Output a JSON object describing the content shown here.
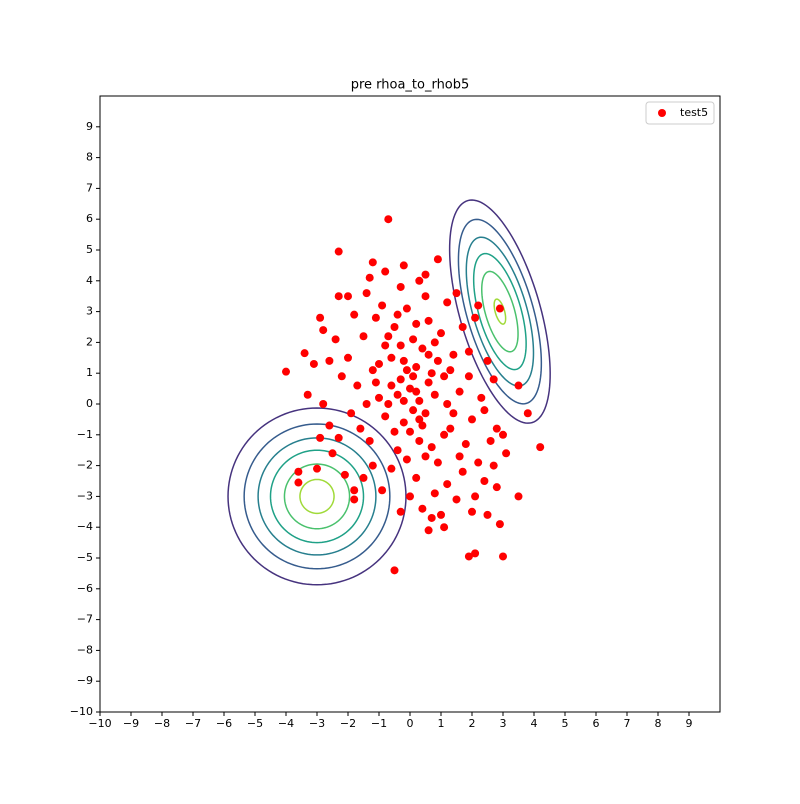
{
  "chart_data": {
    "type": "scatter",
    "title": "pre rhoa_to_rhob5",
    "xlim": [
      -10,
      10
    ],
    "ylim": [
      -10,
      10
    ],
    "xticks": [
      {
        "value": -10,
        "label": "−10"
      },
      {
        "value": -9,
        "label": "−9"
      },
      {
        "value": -8,
        "label": "−8"
      },
      {
        "value": -7,
        "label": "−7"
      },
      {
        "value": -6,
        "label": "−6"
      },
      {
        "value": -5,
        "label": "−5"
      },
      {
        "value": -4,
        "label": "−4"
      },
      {
        "value": -3,
        "label": "−3"
      },
      {
        "value": -2,
        "label": "−2"
      },
      {
        "value": -1,
        "label": "−1"
      },
      0,
      1,
      2,
      3,
      4,
      5,
      6,
      7,
      8,
      9
    ],
    "yticks": [
      {
        "value": -10,
        "label": "−10"
      },
      {
        "value": -9,
        "label": "−9"
      },
      {
        "value": -8,
        "label": "−8"
      },
      {
        "value": -7,
        "label": "−7"
      },
      {
        "value": -6,
        "label": "−6"
      },
      {
        "value": -5,
        "label": "−5"
      },
      {
        "value": -4,
        "label": "−4"
      },
      {
        "value": -3,
        "label": "−3"
      },
      {
        "value": -2,
        "label": "−2"
      },
      {
        "value": -1,
        "label": "−1"
      },
      0,
      1,
      2,
      3,
      4,
      5,
      6,
      7,
      8,
      9
    ],
    "legend": "upper right",
    "series": [
      {
        "name": "test5",
        "color": "#ff0000",
        "x": [
          0,
          0.2,
          -0.3,
          0.5,
          -0.6,
          0.1,
          -0.2,
          0.8,
          -1.0,
          0.4,
          -0.5,
          0.3,
          1.1,
          -0.8,
          0.6,
          -1.2,
          1.3,
          -0.1,
          0.9,
          -1.5,
          1.6,
          -0.4,
          0.7,
          -0.9,
          1.8,
          -1.7,
          0.2,
          1.0,
          -1.3,
          1.4,
          -0.7,
          0.0,
          2.0,
          -2.0,
          0.5,
          -1.1,
          1.2,
          -0.3,
          1.7,
          -1.9,
          2.2,
          0.8,
          -0.6,
          1.5,
          -2.2,
          -1.4,
          0.3,
          -0.2,
          0.6,
          -0.4,
          0.1,
          0.9,
          -0.8,
          0.4,
          1.2,
          -1.0,
          0.2,
          -0.5,
          1.9,
          -1.6,
          2.3,
          -2.4,
          0.7,
          -1.2,
          1.1,
          -0.1,
          2.6,
          1.7,
          -2.5,
          -1.5,
          0.0,
          -0.9,
          0.4,
          1.0,
          2.4,
          -2.1,
          -1.8,
          -2.6,
          -1.3,
          -0.8,
          0.3,
          1.2,
          1.9,
          2.1,
          -2.8,
          -2.0,
          -0.2,
          0.1,
          -0.3,
          0.6,
          -0.7,
          0.5,
          1.4,
          -1.1,
          0.2,
          -0.1,
          0.3,
          -0.6,
          0.8,
          -0.4,
          1.3,
          -1.4,
          2.7,
          3.0,
          -2.8,
          -2.3,
          1.6,
          2.1,
          -0.3,
          0.6,
          -0.7,
          -2.3,
          -1.2,
          0.9,
          -4.0,
          -3.4,
          4.2,
          3.0,
          1.9,
          2.1,
          -0.5,
          3.5,
          2.9,
          2.9,
          2.2,
          3.8,
          3.5,
          -3.6,
          -3.6,
          -3.0,
          -1.8,
          -1.8,
          -2.9,
          1.1,
          0.7,
          2.8,
          2.5,
          2.0,
          3.1,
          1.5,
          0.5,
          -0.2,
          -2.3,
          -2.9,
          -3.1,
          -3.3,
          -2.6,
          2.5,
          2.7,
          2.4,
          2.8
        ],
        "y": [
          0.5,
          1.2,
          0.8,
          -0.3,
          1.5,
          2.1,
          -0.6,
          0.3,
          0.2,
          1.8,
          2.5,
          -1.2,
          0.9,
          -0.4,
          2.7,
          1.1,
          -0.8,
          3.1,
          -1.9,
          2.2,
          0.4,
          -1.5,
          1.0,
          3.2,
          -1.3,
          0.6,
          -2.4,
          2.3,
          -1.2,
          1.6,
          0.0,
          -0.9,
          -0.5,
          1.5,
          3.5,
          2.8,
          -2.6,
          3.8,
          2.5,
          -0.3,
          -1.9,
          -2.9,
          -2.1,
          -3.1,
          0.9,
          3.6,
          0.1,
          1.4,
          0.7,
          0.3,
          -0.2,
          1.4,
          1.9,
          -0.7,
          0.0,
          1.3,
          2.6,
          -0.9,
          0.9,
          -0.8,
          0.2,
          2.1,
          -1.4,
          -2.0,
          -1.0,
          -1.8,
          -1.2,
          -2.2,
          -1.6,
          -2.4,
          -3.0,
          -2.8,
          -3.4,
          -3.6,
          -2.5,
          -2.3,
          2.9,
          1.4,
          4.1,
          4.3,
          4.0,
          3.3,
          1.7,
          2.8,
          2.4,
          3.5,
          0.1,
          0.9,
          1.9,
          1.6,
          2.2,
          -1.7,
          -0.3,
          0.7,
          0.4,
          1.1,
          -0.5,
          0.6,
          2.0,
          2.9,
          1.1,
          0.0,
          -2.0,
          -1.0,
          0.0,
          -1.1,
          -1.7,
          -3.0,
          -3.5,
          -4.1,
          6.0,
          4.95,
          4.6,
          4.7,
          1.05,
          1.65,
          -1.4,
          -4.95,
          -4.95,
          -4.85,
          -5.4,
          -3.0,
          -3.9,
          3.1,
          3.2,
          -0.3,
          0.6,
          -2.55,
          -2.2,
          -2.1,
          -3.1,
          -2.8,
          -1.1,
          -4.0,
          -3.7,
          -2.7,
          -3.6,
          -3.5,
          -1.6,
          3.6,
          4.2,
          4.5,
          3.5,
          2.8,
          1.3,
          0.3,
          -0.7,
          1.4,
          0.8,
          -0.2,
          -0.8
        ]
      }
    ],
    "contours": [
      {
        "center": [
          -3,
          -3
        ],
        "angle": 0,
        "levels": [
          {
            "rx": 2.87,
            "ry": 2.87,
            "color": "#46337e"
          },
          {
            "rx": 2.35,
            "ry": 2.35,
            "color": "#365c8d"
          },
          {
            "rx": 1.9,
            "ry": 1.9,
            "color": "#277f8e"
          },
          {
            "rx": 1.5,
            "ry": 1.5,
            "color": "#1fa187"
          },
          {
            "rx": 1.05,
            "ry": 1.05,
            "color": "#4ac16d"
          },
          {
            "rx": 0.55,
            "ry": 0.55,
            "color": "#a0da39"
          }
        ]
      },
      {
        "center": [
          2.9,
          3.0
        ],
        "angle": -74,
        "levels": [
          {
            "rx": 3.75,
            "ry": 1.3,
            "color": "#46337e"
          },
          {
            "rx": 3.1,
            "ry": 1.07,
            "color": "#365c8d"
          },
          {
            "rx": 2.5,
            "ry": 0.87,
            "color": "#277f8e"
          },
          {
            "rx": 1.95,
            "ry": 0.68,
            "color": "#1fa187"
          },
          {
            "rx": 1.35,
            "ry": 0.47,
            "color": "#4ac16d"
          },
          {
            "rx": 0.42,
            "ry": 0.15,
            "color": "#a0da39"
          }
        ]
      }
    ]
  }
}
